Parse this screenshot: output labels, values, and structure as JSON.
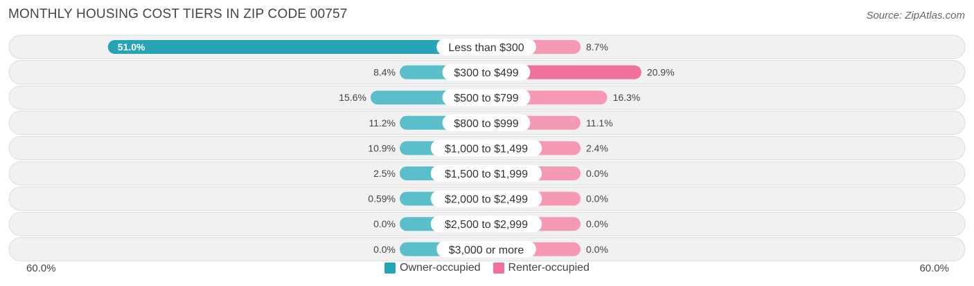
{
  "header": {
    "title": "MONTHLY HOUSING COST TIERS IN ZIP CODE 00757",
    "source": "Source: ZipAtlas.com"
  },
  "colors": {
    "owner": "#5bbfcb",
    "owner_strong": "#26a4b6",
    "renter": "#f599b5",
    "renter_strong": "#f0709b",
    "row_bg": "#eeeeee"
  },
  "chart_data": {
    "type": "bar",
    "orientation": "horizontal-diverging",
    "categories": [
      "Less than $300",
      "$300 to $499",
      "$500 to $799",
      "$800 to $999",
      "$1,000 to $1,499",
      "$1,500 to $1,999",
      "$2,000 to $2,499",
      "$2,500 to $2,999",
      "$3,000 or more"
    ],
    "series": [
      {
        "name": "Owner-occupied",
        "values": [
          51.0,
          8.4,
          15.6,
          11.2,
          10.9,
          2.5,
          0.59,
          0.0,
          0.0
        ],
        "labels": [
          "51.0%",
          "8.4%",
          "15.6%",
          "11.2%",
          "10.9%",
          "2.5%",
          "0.59%",
          "0.0%",
          "0.0%"
        ]
      },
      {
        "name": "Renter-occupied",
        "values": [
          8.7,
          20.9,
          16.3,
          11.1,
          2.4,
          0.0,
          0.0,
          0.0,
          0.0
        ],
        "labels": [
          "8.7%",
          "20.9%",
          "16.3%",
          "11.1%",
          "2.4%",
          "0.0%",
          "0.0%",
          "0.0%",
          "0.0%"
        ]
      }
    ],
    "xlim": [
      -60,
      60
    ],
    "axis_min_label": "60.0%",
    "axis_max_label": "60.0%",
    "legend_position": "bottom-center"
  }
}
